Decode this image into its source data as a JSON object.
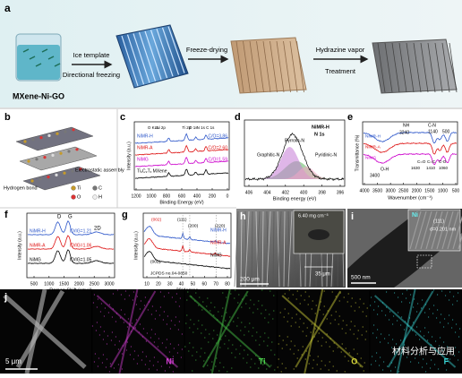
{
  "panels": {
    "a": {
      "label": "a",
      "sample": "MXene-Ni-GO",
      "step1": "Ice template",
      "step1_sub": "Directional freezing",
      "step2": "Freeze-drying",
      "step3": "Hydrazine vapor",
      "step3_sub": "Treatment"
    },
    "b": {
      "label": "b",
      "assembly": "Electrostatic assembly",
      "bond": "Hydrogen bond",
      "legend": [
        "Ti",
        "C",
        "O",
        "H"
      ]
    },
    "c": {
      "label": "c",
      "ylabel": "Intensity (a.u.)",
      "xlabel": "Binding Energy (eV)",
      "xticks": [
        "1200",
        "1000",
        "800",
        "600",
        "400",
        "200",
        "0"
      ],
      "peaks": [
        "O KLL",
        "Ni 2p",
        "Ti 2p",
        "O 1s",
        "N 1s",
        "C 1s"
      ],
      "samples": [
        "NiMR-H",
        "NiMR-A",
        "NiMG",
        "Ti₃C₂Tₓ MXene"
      ],
      "ratios": [
        "C/O=3.86",
        "C/O=2.60",
        "C/O=1.59"
      ]
    },
    "d": {
      "label": "d",
      "sample": "NiMR-H",
      "line": "N 1s",
      "components": [
        "Pyrrolic-N",
        "Graphitic-N",
        "Pyridinic-N"
      ],
      "xlabel": "Binding energy (eV)",
      "xticks": [
        "406",
        "404",
        "402",
        "400",
        "398",
        "396"
      ]
    },
    "e": {
      "label": "e",
      "ylabel": "Transmittance (%)",
      "xlabel": "Wavenumber (cm⁻¹)",
      "xticks": [
        "4000",
        "3500",
        "3000",
        "2500",
        "2000",
        "1500",
        "1000",
        "500"
      ],
      "samples": [
        "NiMR-H",
        "NiMR-A",
        "NiMG"
      ],
      "bands": [
        "NH",
        "3240",
        "C-N",
        "1140",
        "500",
        "O-H",
        "3400",
        "C=O",
        "1630",
        "C=C",
        "1410",
        "C-O",
        "1060"
      ]
    },
    "f": {
      "label": "f",
      "ylabel": "Intensity (a.u.)",
      "xlabel": "Raman Shift (cm⁻¹)",
      "xticks": [
        "500",
        "1000",
        "1500",
        "2000",
        "2500",
        "3000"
      ],
      "peaks": [
        "D",
        "G",
        "2D"
      ],
      "samples": [
        "NiMR-H",
        "NiMR-A",
        "NiMG"
      ],
      "ratios": [
        "ID/IG=1.21",
        "ID/IG=1.06",
        "ID/IG=1.05"
      ]
    },
    "g": {
      "label": "g",
      "ylabel": "Intensity (a.u.)",
      "xlabel": "2θ/degree",
      "xticks": [
        "10",
        "20",
        "30",
        "40",
        "50",
        "60",
        "70",
        "80"
      ],
      "planes": [
        "(002)",
        "(111)",
        "(200)",
        "(220)",
        "(002)"
      ],
      "samples": [
        "NiMR-H",
        "NiMR-A",
        "NiMG"
      ],
      "reference": "JCPDS no.04-0850"
    },
    "h": {
      "label": "h",
      "density": "6.40 mg cm⁻³",
      "scale": "200 μm",
      "spacing": "35 μm"
    },
    "i": {
      "label": "i",
      "element": "Ni",
      "plane": "(111)",
      "dspacing": "d=0.201 nm",
      "scale": "500 nm"
    },
    "j": {
      "label": "j",
      "scale": "5 μm",
      "maps": [
        "Ni",
        "Ti",
        "O",
        "F"
      ],
      "watermark": "材料分析与应用"
    }
  }
}
